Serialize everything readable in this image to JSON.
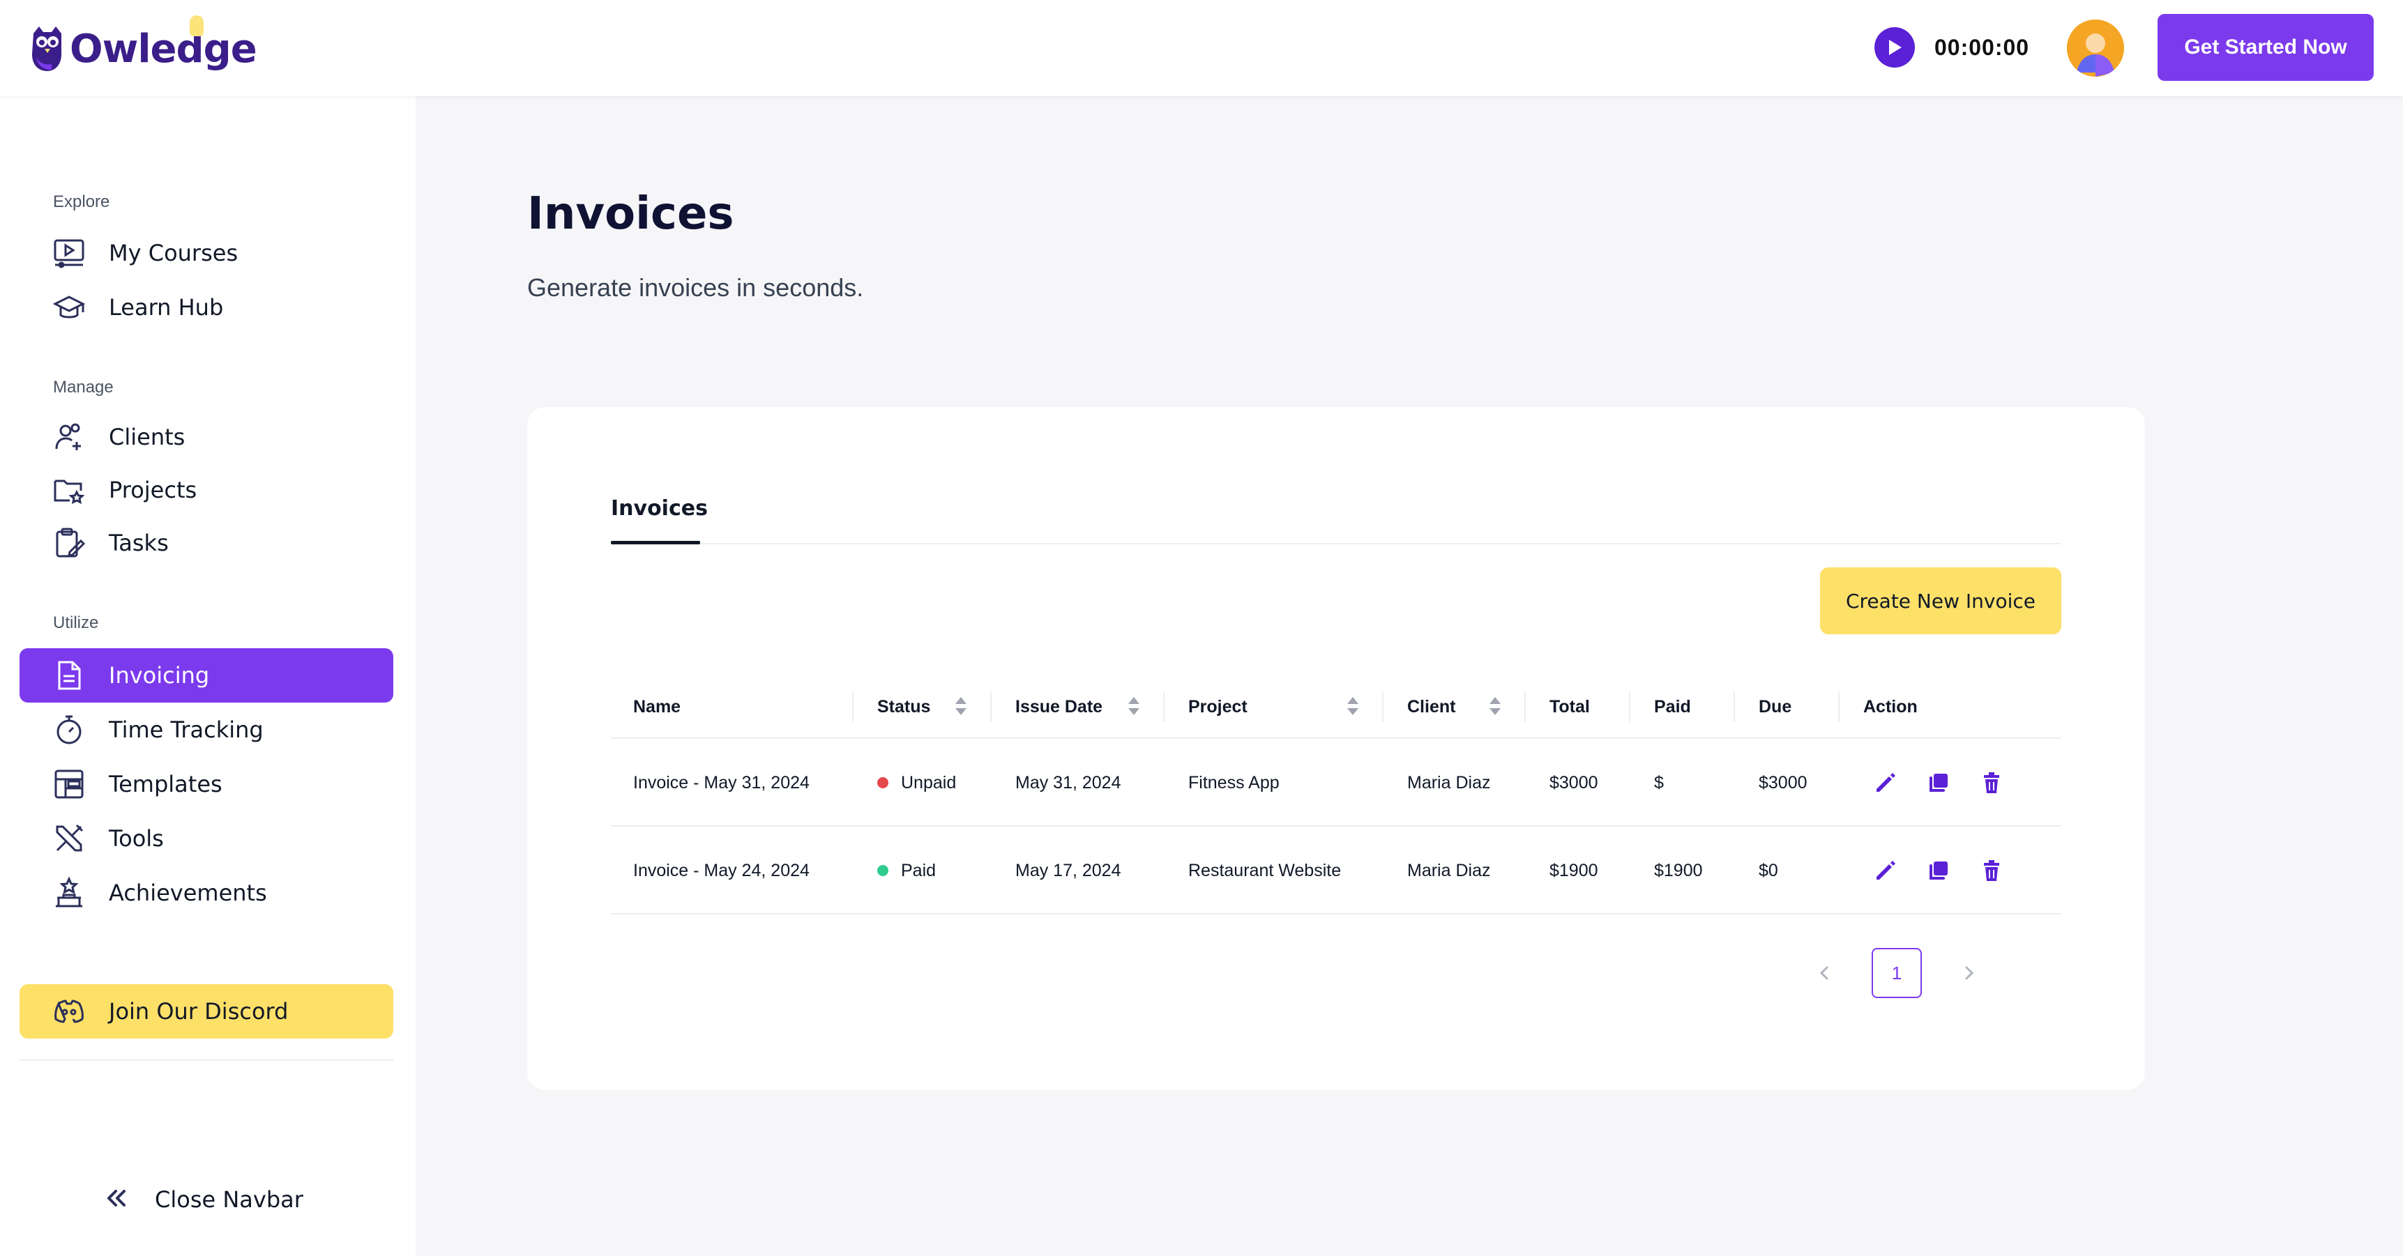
{
  "header": {
    "logo_text": "Owledge",
    "timer": "00:00:00",
    "cta_label": "Get Started Now"
  },
  "sidebar": {
    "sections": [
      {
        "label": "Explore",
        "items": [
          {
            "label": "My Courses",
            "icon": "play-screen-icon"
          },
          {
            "label": "Learn Hub",
            "icon": "graduation-cap-icon"
          }
        ]
      },
      {
        "label": "Manage",
        "items": [
          {
            "label": "Clients",
            "icon": "users-plus-icon"
          },
          {
            "label": "Projects",
            "icon": "folder-star-icon"
          },
          {
            "label": "Tasks",
            "icon": "clipboard-pen-icon"
          }
        ]
      },
      {
        "label": "Utilize",
        "items": [
          {
            "label": "Invoicing",
            "icon": "document-icon",
            "active": true
          },
          {
            "label": "Time Tracking",
            "icon": "stopwatch-icon"
          },
          {
            "label": "Templates",
            "icon": "layout-grid-icon"
          },
          {
            "label": "Tools",
            "icon": "tools-icon"
          },
          {
            "label": "Achievements",
            "icon": "podium-star-icon"
          }
        ]
      }
    ],
    "discord_label": "Join Our Discord",
    "close_label": "Close Navbar"
  },
  "main": {
    "title": "Invoices",
    "subtitle": "Generate invoices in seconds.",
    "tab_label": "Invoices",
    "create_label": "Create New Invoice",
    "columns": [
      "Name",
      "Status",
      "Issue Date",
      "Project",
      "Client",
      "Total",
      "Paid",
      "Due",
      "Action"
    ],
    "rows": [
      {
        "name": "Invoice - May 31, 2024",
        "status": "Unpaid",
        "status_color": "#E5484D",
        "issue_date": "May 31, 2024",
        "project": "Fitness App",
        "client": "Maria Diaz",
        "total": "$3000",
        "paid": "$",
        "due": "$3000"
      },
      {
        "name": "Invoice - May 24, 2024",
        "status": "Paid",
        "status_color": "#2ECC8F",
        "issue_date": "May 17, 2024",
        "project": "Restaurant Website",
        "client": "Maria Diaz",
        "total": "$1900",
        "paid": "$1900",
        "due": "$0"
      }
    ],
    "page": "1"
  },
  "colors": {
    "accent": "#7C3AED",
    "accent_dark": "#5B21D6",
    "highlight": "#FDE068"
  }
}
